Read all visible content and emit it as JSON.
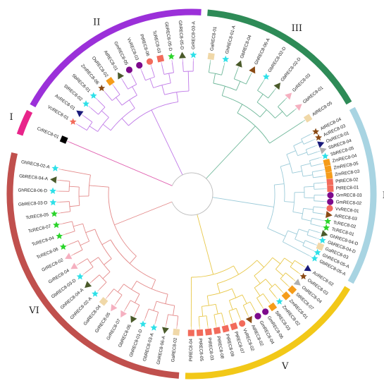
{
  "figure": {
    "groups": [
      {
        "id": "I",
        "label": "I",
        "color": "#e8248a"
      },
      {
        "id": "II",
        "label": "II",
        "color": "#9b30d9"
      },
      {
        "id": "III",
        "label": "III",
        "color": "#2e8b57"
      },
      {
        "id": "IV",
        "label": "IV",
        "color": "#a8d4e2"
      },
      {
        "id": "V",
        "label": "V",
        "color": "#f2c818"
      },
      {
        "id": "VI",
        "label": "VI",
        "color": "#c0504d"
      }
    ],
    "colors": {
      "I": "#e8248a",
      "II": "#9b30d9",
      "III": "#2e8b57",
      "IV": "#a8d4e2",
      "V": "#f2c818",
      "VI": "#c0504d",
      "branch_I": "#e060b0",
      "branch_II": "#c07ae8",
      "branch_III": "#6fb89a",
      "branch_IV": "#9ccbd9",
      "branch_V": "#e8c84a",
      "branch_VI": "#e48a8a",
      "core": "#bbbbbb",
      "black": "#000000",
      "salmon": "#f26b5b",
      "cyan": "#2ee0e8",
      "navy": "#1a1a7a",
      "brown": "#8a4a14",
      "orange": "#f59c1a",
      "purple": "#7d0a8c",
      "olive": "#4a5a2a",
      "green": "#2ad42a",
      "pink": "#f5b0c0",
      "tan": "#f0d8a8",
      "gray": "#b0b0b0"
    },
    "leaves": [
      {
        "name": "CrREC8-01",
        "group": "I",
        "marker": "black-square"
      },
      {
        "name": "VcREC8-01",
        "group": "II",
        "marker": "salmon-star"
      },
      {
        "name": "AcREC8-01",
        "group": "II",
        "marker": "navy-triangle"
      },
      {
        "name": "StREC8-02",
        "group": "II",
        "marker": "cyan-star"
      },
      {
        "name": "SbREC8-01",
        "group": "II",
        "marker": "cyan-star"
      },
      {
        "name": "ZmREC8-06",
        "group": "II",
        "marker": "brown-star"
      },
      {
        "name": "OsREC8-02",
        "group": "II",
        "marker": "orange-square"
      },
      {
        "name": "AtREC8-01",
        "group": "II",
        "marker": "olive-triangle"
      },
      {
        "name": "GmREC8-05",
        "group": "II",
        "marker": "purple-circle"
      },
      {
        "name": "VvREC8-03",
        "group": "II",
        "marker": "purple-circle"
      },
      {
        "name": "PtREC8-06",
        "group": "II",
        "marker": "salmon-circle"
      },
      {
        "name": "TcREC8-03",
        "group": "II",
        "marker": "salmon-square"
      },
      {
        "name": "GbREC8-05-D",
        "group": "II",
        "marker": "green-star"
      },
      {
        "name": "GhREC8-05-D",
        "group": "II",
        "marker": "olive-triangle"
      },
      {
        "name": "GrREC8-03-A",
        "group": "II",
        "marker": "cyan-star"
      },
      {
        "name": "GaREC8-01",
        "group": "III",
        "marker": "tan-square"
      },
      {
        "name": "GhREC8-01-A",
        "group": "III",
        "marker": "cyan-star"
      },
      {
        "name": "GbREC8-04",
        "group": "III",
        "marker": "olive-triangle"
      },
      {
        "name": "GhREC8-06-A",
        "group": "III",
        "marker": "brown-triangle"
      },
      {
        "name": "GbREC8-02-D",
        "group": "III",
        "marker": "cyan-star"
      },
      {
        "name": "GbREC8-02-D",
        "group": "III",
        "marker": "olive-triangle"
      },
      {
        "name": "GrREC8-03",
        "group": "III",
        "marker": "pink-triangle"
      },
      {
        "name": "GbREC8-01",
        "group": "III",
        "marker": "pink-triangle"
      },
      {
        "name": "AtREC8-05",
        "group": "III",
        "marker": "tan-square"
      },
      {
        "name": "AtREC8-04",
        "group": "IV",
        "marker": "brown-star"
      },
      {
        "name": "AcREC8-03",
        "group": "IV",
        "marker": "brown-star"
      },
      {
        "name": "OsREC8-01",
        "group": "IV",
        "marker": "navy-triangle"
      },
      {
        "name": "SbREC8-04",
        "group": "IV",
        "marker": "gray-triangle"
      },
      {
        "name": "SbREC8-05",
        "group": "IV",
        "marker": "cyan-star"
      },
      {
        "name": "ZmREC8-04",
        "group": "IV",
        "marker": "orange-square"
      },
      {
        "name": "ZmREC8-05",
        "group": "IV",
        "marker": "orange-square"
      },
      {
        "name": "ZmREC8-03",
        "group": "IV",
        "marker": "orange-square"
      },
      {
        "name": "PtREC8-02",
        "group": "IV",
        "marker": "salmon-square"
      },
      {
        "name": "PtREC8-01",
        "group": "IV",
        "marker": "salmon-square"
      },
      {
        "name": "GmREC8-03",
        "group": "IV",
        "marker": "purple-circle"
      },
      {
        "name": "GmREC8-02",
        "group": "IV",
        "marker": "purple-circle"
      },
      {
        "name": "VvREC8-01",
        "group": "IV",
        "marker": "salmon-circle"
      },
      {
        "name": "AtREC8-03",
        "group": "IV",
        "marker": "brown-triangle"
      },
      {
        "name": "TcREC8-02",
        "group": "IV",
        "marker": "green-star"
      },
      {
        "name": "TcREC8-01",
        "group": "IV",
        "marker": "green-star"
      },
      {
        "name": "GhREC8-04-D",
        "group": "IV",
        "marker": "olive-triangle"
      },
      {
        "name": "GbREC8-04-D",
        "group": "IV",
        "marker": "cyan-star"
      },
      {
        "name": "GaREC8-03",
        "group": "IV",
        "marker": "tan-square"
      },
      {
        "name": "GhREC8-05-A",
        "group": "IV",
        "marker": "cyan-star"
      },
      {
        "name": "GbREC8-05-A",
        "group": "IV",
        "marker": "cyan-star"
      },
      {
        "name": "AcREC8-02",
        "group": "V",
        "marker": "navy-triangle"
      },
      {
        "name": "OsREC8-03",
        "group": "V",
        "marker": "brown-star"
      },
      {
        "name": "OsREC8-04",
        "group": "V",
        "marker": "gray-triangle"
      },
      {
        "name": "StREC8-07",
        "group": "V",
        "marker": "orange-square"
      },
      {
        "name": "ZmREC8-01",
        "group": "V",
        "marker": "orange-square"
      },
      {
        "name": "ZmREC8-02",
        "group": "V",
        "marker": "cyan-star"
      },
      {
        "name": "StREC8-03",
        "group": "V",
        "marker": "orange-square"
      },
      {
        "name": "GmREC8-06",
        "group": "V",
        "marker": "purple-circle"
      },
      {
        "name": "GmREC8-04",
        "group": "V",
        "marker": "purple-circle"
      },
      {
        "name": "AtREC8-02",
        "group": "V",
        "marker": "brown-triangle"
      },
      {
        "name": "VvREC8-02",
        "group": "V",
        "marker": "salmon-circle"
      },
      {
        "name": "PtREC8-07",
        "group": "V",
        "marker": "salmon-square"
      },
      {
        "name": "PtREC8-09",
        "group": "V",
        "marker": "salmon-square"
      },
      {
        "name": "PtREC8-08",
        "group": "V",
        "marker": "salmon-square"
      },
      {
        "name": "PtREC8-03",
        "group": "V",
        "marker": "salmon-square"
      },
      {
        "name": "PtREC8-05",
        "group": "V",
        "marker": "salmon-square"
      },
      {
        "name": "PtREC8-04",
        "group": "V",
        "marker": "salmon-square"
      },
      {
        "name": "GaREC8-02",
        "group": "VI",
        "marker": "tan-square"
      },
      {
        "name": "GhREC8-06-A",
        "group": "VI",
        "marker": "olive-triangle"
      },
      {
        "name": "GbREC8-03-A",
        "group": "VI",
        "marker": "cyan-star"
      },
      {
        "name": "GhREC8-01-D",
        "group": "VI",
        "marker": "cyan-star"
      },
      {
        "name": "GbREC8-06",
        "group": "VI",
        "marker": "olive-triangle"
      },
      {
        "name": "GrREC8-07",
        "group": "VI",
        "marker": "pink-triangle"
      },
      {
        "name": "GrREC8-05",
        "group": "VI",
        "marker": "pink-triangle"
      },
      {
        "name": "GaREC8-04",
        "group": "VI",
        "marker": "tan-square"
      },
      {
        "name": "GhREC8-02-A",
        "group": "VI",
        "marker": "cyan-star"
      },
      {
        "name": "GhREC8-04-A",
        "group": "VI",
        "marker": "olive-triangle"
      },
      {
        "name": "GbREC8-03-D",
        "group": "VI",
        "marker": "cyan-star"
      },
      {
        "name": "GrREC8-04",
        "group": "VI",
        "marker": "pink-triangle"
      },
      {
        "name": "GrREC8-02",
        "group": "VI",
        "marker": "pink-triangle"
      },
      {
        "name": "TcREC8-06",
        "group": "VI",
        "marker": "green-star"
      },
      {
        "name": "TcREC8-04",
        "group": "VI",
        "marker": "green-star"
      },
      {
        "name": "TcREC8-07",
        "group": "VI",
        "marker": "green-star"
      },
      {
        "name": "TcREC8-05",
        "group": "VI",
        "marker": "green-star"
      },
      {
        "name": "GbREC8-03-D",
        "group": "VI",
        "marker": "cyan-star"
      },
      {
        "name": "GhREC8-06-D",
        "group": "VI",
        "marker": "cyan-star"
      },
      {
        "name": "GbREC8-04-A",
        "group": "VI",
        "marker": "olive-triangle"
      },
      {
        "name": "GhREC8-02-A",
        "group": "VI",
        "marker": "cyan-star"
      }
    ]
  }
}
